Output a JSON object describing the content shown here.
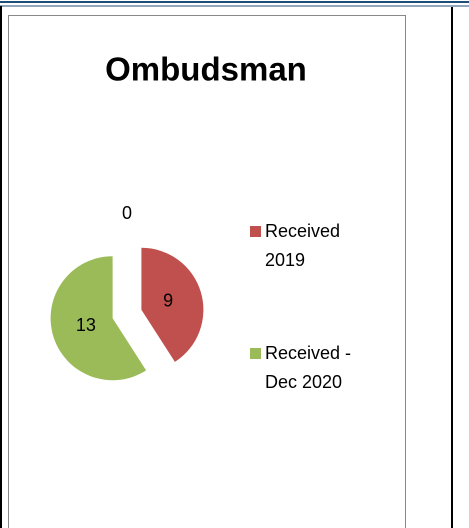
{
  "chart_data": {
    "type": "pie",
    "title": "Ombudsman",
    "categories": [
      "Received 2019",
      "Received - Dec 2020",
      null
    ],
    "values": [
      9,
      13,
      0
    ],
    "colors": [
      "#c0504d",
      "#9bbb59",
      "#4f81bd"
    ],
    "legend": "right"
  }
}
